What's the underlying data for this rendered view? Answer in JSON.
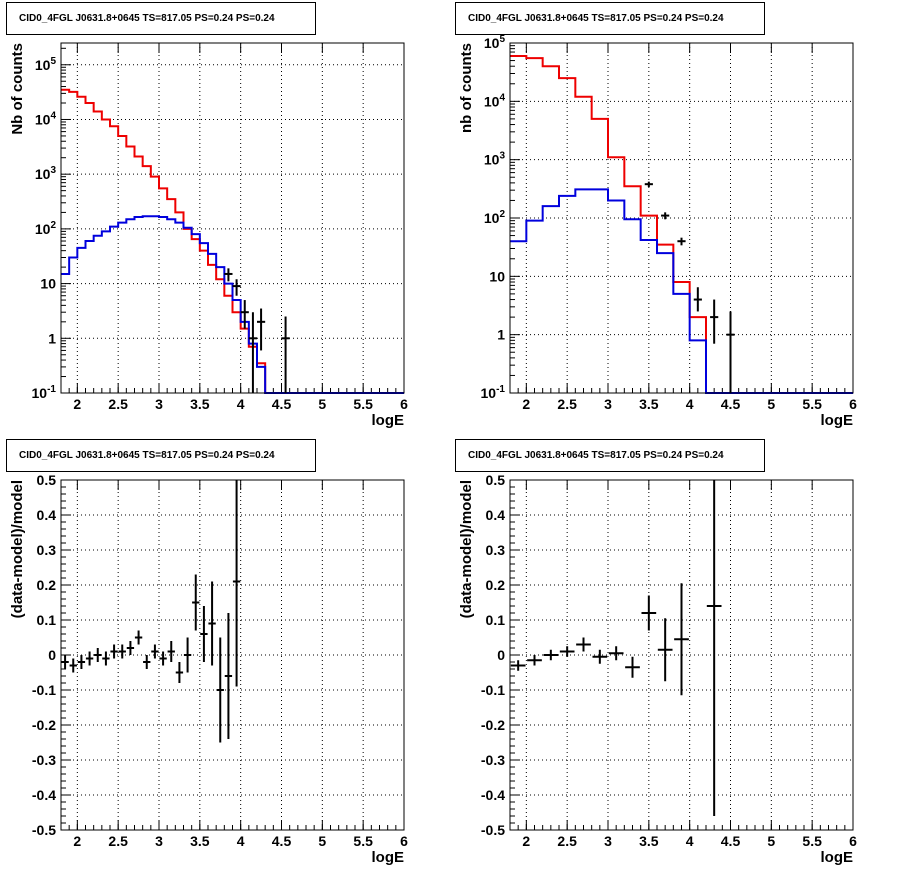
{
  "colors": {
    "data": "#000000",
    "model_total": "#ee0000",
    "model_source": "#0000dd",
    "grid": "#000000"
  },
  "chart_data": [
    {
      "type": "histogram-line",
      "title": "CID0_4FGL J0631.8+0645 TS=817.05 PS=0.24 PS=0.24",
      "xlabel": "logE",
      "ylabel": "Nb of counts",
      "log_y": true,
      "grid": true,
      "xlim": [
        1.8,
        6.0
      ],
      "ylim": [
        0.1,
        250000
      ],
      "x_ticks": [
        "2",
        "2.5",
        "3",
        "3.5",
        "4",
        "4.5",
        "5",
        "5.5",
        "6"
      ],
      "y_ticks": [
        "10^-1",
        "1",
        "10",
        "10^2",
        "10^3",
        "10^4",
        "10^5"
      ],
      "bin_edges": [
        1.8,
        1.9,
        2.0,
        2.1,
        2.2,
        2.3,
        2.4,
        2.5,
        2.6,
        2.7,
        2.8,
        2.9,
        3.0,
        3.1,
        3.2,
        3.3,
        3.4,
        3.5,
        3.6,
        3.7,
        3.8,
        3.9,
        4.0,
        4.1,
        4.2,
        4.3,
        4.4,
        4.5,
        4.6,
        4.7,
        4.8,
        4.9,
        5.0,
        5.1,
        5.2,
        5.3,
        5.4,
        5.5,
        5.6,
        5.7,
        5.8,
        5.9,
        6.0
      ],
      "series": [
        {
          "role": "model_total",
          "values": [
            35000,
            32000,
            26000,
            20000,
            14000,
            10000,
            7500,
            5000,
            3200,
            2100,
            1400,
            900,
            550,
            350,
            200,
            100,
            65,
            40,
            22,
            12,
            6,
            3,
            1.5,
            0.7,
            0.35,
            0.1,
            0.1,
            0.1,
            0.1,
            0.1,
            0.1,
            0.1,
            0.1,
            0.1,
            0.1,
            0.1,
            0.1,
            0.1,
            0.1,
            0.1,
            0.1,
            0.1
          ]
        },
        {
          "role": "model_source",
          "values": [
            15,
            30,
            45,
            60,
            75,
            90,
            110,
            130,
            150,
            165,
            170,
            170,
            165,
            150,
            130,
            105,
            80,
            55,
            35,
            20,
            10,
            5,
            2,
            0.8,
            0.3,
            0.1,
            0.1,
            0.1,
            0.1,
            0.1,
            0.1,
            0.1,
            0.1,
            0.1,
            0.1,
            0.1,
            0.1,
            0.1,
            0.1,
            0.1,
            0.1,
            0.1
          ]
        }
      ],
      "data_points": [
        {
          "x": 3.85,
          "y": 15,
          "ylo": 11,
          "yhi": 19
        },
        {
          "x": 3.95,
          "y": 9,
          "ylo": 6,
          "yhi": 12
        },
        {
          "x": 4.05,
          "y": 3,
          "ylo": 1.5,
          "yhi": 5
        },
        {
          "x": 4.15,
          "y": 1,
          "ylo": 0.1,
          "yhi": 3
        },
        {
          "x": 4.25,
          "y": 2,
          "ylo": 0.6,
          "yhi": 3.5
        },
        {
          "x": 4.55,
          "y": 1,
          "ylo": 0.1,
          "yhi": 2.5
        }
      ]
    },
    {
      "type": "histogram-line",
      "title": "CID0_4FGL J0631.8+0645 TS=817.05 PS=0.24 PS=0.24",
      "xlabel": "logE",
      "ylabel": "nb of counts",
      "log_y": true,
      "grid": true,
      "xlim": [
        1.8,
        6.0
      ],
      "ylim": [
        0.1,
        100000
      ],
      "x_ticks": [
        "2",
        "2.5",
        "3",
        "3.5",
        "4",
        "4.5",
        "5",
        "5.5",
        "6"
      ],
      "y_ticks": [
        "10^-1",
        "1",
        "10",
        "10^2",
        "10^3",
        "10^4",
        "10^5"
      ],
      "bin_edges": [
        1.8,
        2.0,
        2.2,
        2.4,
        2.6,
        2.8,
        3.0,
        3.2,
        3.4,
        3.6,
        3.8,
        4.0,
        4.2,
        4.4,
        4.6,
        4.8,
        5.0,
        5.2,
        5.4,
        5.6,
        5.8,
        6.0
      ],
      "series": [
        {
          "role": "model_total",
          "values": [
            60000,
            55000,
            40000,
            25000,
            12000,
            5000,
            1100,
            350,
            110,
            35,
            8,
            2,
            0.1,
            0.1,
            0.1,
            0.1,
            0.1,
            0.1,
            0.1,
            0.1,
            0.1
          ]
        },
        {
          "role": "model_source",
          "values": [
            40,
            90,
            160,
            240,
            310,
            310,
            200,
            95,
            42,
            25,
            5,
            0.8,
            0.1,
            0.1,
            0.1,
            0.1,
            0.1,
            0.1,
            0.1,
            0.1,
            0.1
          ]
        }
      ],
      "data_points": [
        {
          "x": 3.5,
          "y": 380,
          "ylo": 340,
          "yhi": 420
        },
        {
          "x": 3.7,
          "y": 110,
          "ylo": 95,
          "yhi": 125
        },
        {
          "x": 3.9,
          "y": 40,
          "ylo": 34,
          "yhi": 46
        },
        {
          "x": 4.1,
          "y": 4,
          "ylo": 2.5,
          "yhi": 6.5
        },
        {
          "x": 4.3,
          "y": 2,
          "ylo": 0.7,
          "yhi": 4
        },
        {
          "x": 4.5,
          "y": 1,
          "ylo": 0.1,
          "yhi": 2.5
        }
      ]
    },
    {
      "type": "scatter-errorbars",
      "title": "CID0_4FGL J0631.8+0645 TS=817.05 PS=0.24 PS=0.24",
      "xlabel": "logE",
      "ylabel": "(data-model)/model",
      "grid": true,
      "xlim": [
        1.8,
        6.0
      ],
      "ylim": [
        -0.5,
        0.5
      ],
      "x_ticks": [
        "2",
        "2.5",
        "3",
        "3.5",
        "4",
        "4.5",
        "5",
        "5.5",
        "6"
      ],
      "y_ticks": [
        "-0.5",
        "-0.4",
        "-0.3",
        "-0.2",
        "-0.1",
        "0",
        "0.1",
        "0.2",
        "0.3",
        "0.4",
        "0.5"
      ],
      "points": [
        {
          "x": 1.85,
          "y": -0.02,
          "err": 0.02
        },
        {
          "x": 1.95,
          "y": -0.03,
          "err": 0.02
        },
        {
          "x": 2.05,
          "y": -0.02,
          "err": 0.02
        },
        {
          "x": 2.15,
          "y": -0.01,
          "err": 0.02
        },
        {
          "x": 2.25,
          "y": 0.0,
          "err": 0.02
        },
        {
          "x": 2.35,
          "y": -0.01,
          "err": 0.02
        },
        {
          "x": 2.45,
          "y": 0.01,
          "err": 0.02
        },
        {
          "x": 2.55,
          "y": 0.01,
          "err": 0.02
        },
        {
          "x": 2.65,
          "y": 0.02,
          "err": 0.02
        },
        {
          "x": 2.75,
          "y": 0.05,
          "err": 0.02
        },
        {
          "x": 2.85,
          "y": -0.02,
          "err": 0.02
        },
        {
          "x": 2.95,
          "y": 0.01,
          "err": 0.02
        },
        {
          "x": 3.05,
          "y": -0.01,
          "err": 0.02
        },
        {
          "x": 3.15,
          "y": 0.01,
          "err": 0.03
        },
        {
          "x": 3.25,
          "y": -0.05,
          "err": 0.03
        },
        {
          "x": 3.35,
          "y": 0.0,
          "err": 0.05
        },
        {
          "x": 3.45,
          "y": 0.15,
          "err": 0.08
        },
        {
          "x": 3.55,
          "y": 0.06,
          "err": 0.08
        },
        {
          "x": 3.65,
          "y": 0.09,
          "err": 0.12
        },
        {
          "x": 3.75,
          "y": -0.1,
          "err": 0.15
        },
        {
          "x": 3.85,
          "y": -0.06,
          "err": 0.18
        },
        {
          "x": 3.95,
          "y": 0.21,
          "err": 0.3
        }
      ]
    },
    {
      "type": "scatter-errorbars",
      "title": "CID0_4FGL J0631.8+0645 TS=817.05 PS=0.24 PS=0.24",
      "xlabel": "logE",
      "ylabel": "(data-model)/model",
      "grid": true,
      "xlim": [
        1.8,
        6.0
      ],
      "ylim": [
        -0.5,
        0.5
      ],
      "x_ticks": [
        "2",
        "2.5",
        "3",
        "3.5",
        "4",
        "4.5",
        "5",
        "5.5",
        "6"
      ],
      "y_ticks": [
        "-0.5",
        "-0.4",
        "-0.3",
        "-0.2",
        "-0.1",
        "0",
        "0.1",
        "0.2",
        "0.3",
        "0.4",
        "0.5"
      ],
      "points": [
        {
          "x": 1.9,
          "y": -0.03,
          "err": 0.015
        },
        {
          "x": 2.1,
          "y": -0.015,
          "err": 0.015
        },
        {
          "x": 2.3,
          "y": 0.0,
          "err": 0.015
        },
        {
          "x": 2.5,
          "y": 0.01,
          "err": 0.015
        },
        {
          "x": 2.7,
          "y": 0.03,
          "err": 0.02
        },
        {
          "x": 2.9,
          "y": -0.005,
          "err": 0.02
        },
        {
          "x": 3.1,
          "y": 0.005,
          "err": 0.02
        },
        {
          "x": 3.3,
          "y": -0.035,
          "err": 0.03
        },
        {
          "x": 3.5,
          "y": 0.12,
          "err": 0.05
        },
        {
          "x": 3.7,
          "y": 0.015,
          "err": 0.09
        },
        {
          "x": 3.9,
          "y": 0.045,
          "err": 0.16
        },
        {
          "x": 4.3,
          "y": 0.14,
          "err": 0.6
        }
      ]
    }
  ]
}
